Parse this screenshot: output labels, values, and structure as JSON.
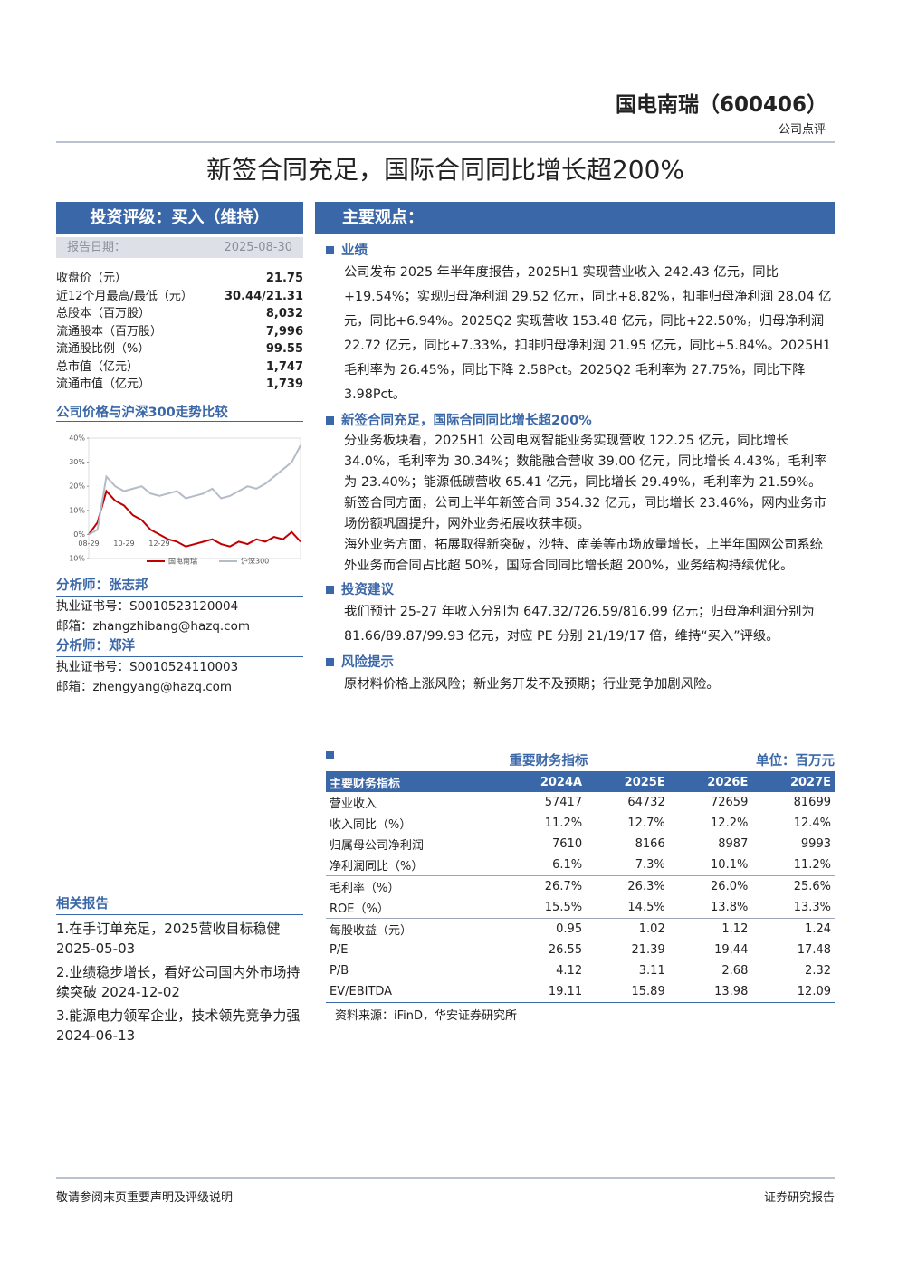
{
  "header": {
    "company": "国电南瑞（600406）",
    "report_type": "公司点评"
  },
  "title": "新签合同充足，国际合同同比增长超200%",
  "rating": {
    "label": "投资评级：买入（维持）",
    "date_label": "报告日期：",
    "date": "2025-08-30"
  },
  "stats": [
    [
      "收盘价（元）",
      "21.75"
    ],
    [
      "近12个月最高/最低（元）",
      "30.44/21.31"
    ],
    [
      "总股本（百万股）",
      "8,032"
    ],
    [
      "流通股本（百万股）",
      "7,996"
    ],
    [
      "流通股比例（%）",
      "99.55"
    ],
    [
      "总市值（亿元）",
      "1,747"
    ],
    [
      "流通市值（亿元）",
      "1,739"
    ]
  ],
  "chart_title": "公司价格与沪深300走势比较",
  "chart_data": {
    "type": "line",
    "categories": [
      "08-29",
      null,
      null,
      null,
      "10-29",
      null,
      null,
      null,
      "12-29",
      null,
      null,
      null,
      null,
      null,
      null,
      null,
      null,
      null,
      null,
      null,
      null,
      null,
      null,
      null,
      null
    ],
    "series": [
      {
        "name": "国电南瑞",
        "color": "#c00000",
        "values": [
          0,
          5,
          18,
          14,
          12,
          8,
          6,
          2,
          0,
          -2,
          -3,
          -5,
          -4,
          -3,
          -2,
          -4,
          -5,
          -3,
          -4,
          -2,
          -3,
          -1,
          -2,
          1,
          -3
        ]
      },
      {
        "name": "沪深300",
        "color": "#b4bcc8",
        "values": [
          0,
          2,
          24,
          20,
          18,
          19,
          20,
          17,
          16,
          17,
          18,
          15,
          16,
          17,
          19,
          15,
          16,
          18,
          20,
          19,
          21,
          24,
          27,
          30,
          37
        ]
      }
    ],
    "ylim": [
      -10,
      40
    ],
    "yticks": [
      {
        "value": -10,
        "label": "-10%"
      },
      {
        "value": 0,
        "label": "0%"
      },
      {
        "value": 10,
        "label": "10%"
      },
      {
        "value": 20,
        "label": "20%"
      },
      {
        "value": 30,
        "label": "30%"
      },
      {
        "value": 40,
        "label": "40%"
      }
    ],
    "grid": false
  },
  "analysts": [
    {
      "label": "分析师：张志邦",
      "cert": "执业证书号：S0010523120004",
      "email": "邮箱：zhangzhibang@hazq.com"
    },
    {
      "label": "分析师：郑洋",
      "cert": "执业证书号：S0010524110003",
      "email": "邮箱：zhengyang@hazq.com"
    }
  ],
  "related": {
    "title": "相关报告",
    "items": [
      "1.在手订单充足，2025营收目标稳健 2025-05-03",
      "2.业绩稳步增长，看好公司国内外市场持续突破 2024-12-02",
      "3.能源电力领军企业，技术领先竞争力强 2024-06-13"
    ]
  },
  "main_title": "主要观点：",
  "sections": [
    {
      "heading": "业绩",
      "paragraphs": [
        "公司发布 2025 年半年度报告，2025H1 实现营业收入 242.43 亿元，同比+19.54%；实现归母净利润 29.52 亿元，同比+8.82%，扣非归母净利润 28.04 亿元，同比+6.94%。2025Q2 实现营收 153.48 亿元，同比+22.50%，归母净利润 22.72 亿元，同比+7.33%，扣非归母净利润 21.95 亿元，同比+5.84%。2025H1 毛利率为 26.45%，同比下降 2.58Pct。2025Q2 毛利率为 27.75%，同比下降 3.98Pct。"
      ]
    },
    {
      "heading": "新签合同充足，国际合同同比增长超200%",
      "paragraphs": [
        "分业务板块看，2025H1 公司电网智能业务实现营收 122.25 亿元，同比增长 34.0%，毛利率为 30.34%；数能融合营收 39.00 亿元，同比增长 4.43%，毛利率为 23.40%；能源低碳营收 65.41 亿元，同比增长 29.49%，毛利率为 21.59%。",
        "新签合同方面，公司上半年新签合同 354.32 亿元，同比增长 23.46%，网内业务市场份额巩固提升，网外业务拓展收获丰硕。",
        "海外业务方面，拓展取得新突破，沙特、南美等市场放量增长，上半年国网公司系统外业务而合同占比超 50%，国际合同同比增长超 200%，业务结构持续优化。"
      ]
    },
    {
      "heading": "投资建议",
      "paragraphs": [
        "我们预计 25-27 年收入分别为 647.32/726.59/816.99 亿元；归母净利润分别为 81.66/89.87/99.93 亿元，对应 PE 分别 21/19/17 倍，维持“买入”评级。"
      ]
    },
    {
      "heading": "风险提示",
      "paragraphs": [
        "原材料价格上涨风险；新业务开发不及预期；行业竞争加剧风险。"
      ]
    }
  ],
  "financials": {
    "heading": "重要财务指标",
    "unit": "单位：百万元",
    "header": [
      "主要财务指标",
      "2024A",
      "2025E",
      "2026E",
      "2027E"
    ],
    "rows": [
      [
        "营业收入",
        "57417",
        "64732",
        "72659",
        "81699"
      ],
      [
        "收入同比（%）",
        "11.2%",
        "12.7%",
        "12.2%",
        "12.4%"
      ],
      [
        "归属母公司净利润",
        "7610",
        "8166",
        "8987",
        "9993"
      ],
      [
        "净利润同比（%）",
        "6.1%",
        "7.3%",
        "10.1%",
        "11.2%"
      ],
      [
        "毛利率（%）",
        "26.7%",
        "26.3%",
        "26.0%",
        "25.6%"
      ],
      [
        "ROE（%）",
        "15.5%",
        "14.5%",
        "13.8%",
        "13.3%"
      ],
      [
        "每股收益（元）",
        "0.95",
        "1.02",
        "1.12",
        "1.24"
      ],
      [
        "P/E",
        "26.55",
        "21.39",
        "19.44",
        "17.48"
      ],
      [
        "P/B",
        "4.12",
        "3.11",
        "2.68",
        "2.32"
      ],
      [
        "EV/EBITDA",
        "19.11",
        "15.89",
        "13.98",
        "12.09"
      ]
    ],
    "source": "资料来源：iFinD，华安证券研究所"
  },
  "footer": {
    "left": "敬请参阅末页重要声明及评级说明",
    "right": "证券研究报告"
  }
}
